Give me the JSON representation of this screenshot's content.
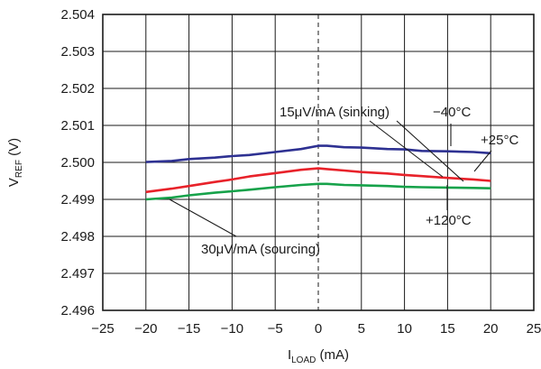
{
  "chart_data": {
    "type": "line",
    "title": "",
    "xlabel": {
      "main": "I",
      "sub": "LOAD",
      "unit": " (mA)"
    },
    "ylabel": {
      "main": "V",
      "sub": "REF",
      "unit": " (V)"
    },
    "xlim": [
      -25,
      25
    ],
    "ylim": [
      2.496,
      2.504
    ],
    "xticks": [
      -25,
      -20,
      -15,
      -10,
      -5,
      0,
      5,
      10,
      15,
      20,
      25
    ],
    "yticks": [
      2.496,
      2.497,
      2.498,
      2.499,
      2.5,
      2.501,
      2.502,
      2.503,
      2.504
    ],
    "xtick_labels": [
      "−25",
      "−20",
      "−15",
      "−10",
      "−5",
      "0",
      "5",
      "10",
      "15",
      "20",
      "25"
    ],
    "ytick_labels": [
      "2.496",
      "2.497",
      "2.498",
      "2.499",
      "2.500",
      "2.501",
      "2.502",
      "2.503",
      "2.504"
    ],
    "grid": true,
    "zero_line": "dashed",
    "series": [
      {
        "id": "minus40",
        "color": "#2e3192",
        "x": [
          -20,
          -17,
          -15,
          -12,
          -10,
          -8,
          -5,
          -2,
          0,
          1,
          3,
          5,
          8,
          10,
          12,
          15,
          18,
          20
        ],
        "y": [
          2.50001,
          2.50004,
          2.50009,
          2.50013,
          2.50017,
          2.5002,
          2.50028,
          2.50036,
          2.50045,
          2.50045,
          2.50041,
          2.5004,
          2.50036,
          2.50035,
          2.50031,
          2.5003,
          2.50028,
          2.50025
        ]
      },
      {
        "id": "plus25",
        "color": "#e8222a",
        "x": [
          -20,
          -17,
          -15,
          -12,
          -10,
          -8,
          -5,
          -2,
          0,
          1,
          3,
          5,
          8,
          10,
          12,
          15,
          18,
          20
        ],
        "y": [
          2.4992,
          2.49929,
          2.49936,
          2.49947,
          2.49954,
          2.49962,
          2.49971,
          2.4998,
          2.49984,
          2.49982,
          2.49978,
          2.49974,
          2.4997,
          2.49966,
          2.49963,
          2.49958,
          2.49954,
          2.4995
        ]
      },
      {
        "id": "plus120",
        "color": "#16a24a",
        "x": [
          -20,
          -17,
          -15,
          -12,
          -10,
          -8,
          -5,
          -2,
          0,
          1,
          3,
          5,
          8,
          10,
          12,
          15,
          18,
          20
        ],
        "y": [
          2.499,
          2.49905,
          2.49911,
          2.49918,
          2.49922,
          2.49926,
          2.49933,
          2.49939,
          2.49942,
          2.49942,
          2.49939,
          2.49938,
          2.49936,
          2.49934,
          2.49933,
          2.49932,
          2.49931,
          2.4993
        ]
      }
    ],
    "annotations": {
      "temp_minus40": "−40°C",
      "temp_plus25": "+25°C",
      "temp_plus120": "+120°C",
      "sinking": "15μV/mA (sinking)",
      "sourcing": "30μV/mA (sourcing)"
    }
  }
}
